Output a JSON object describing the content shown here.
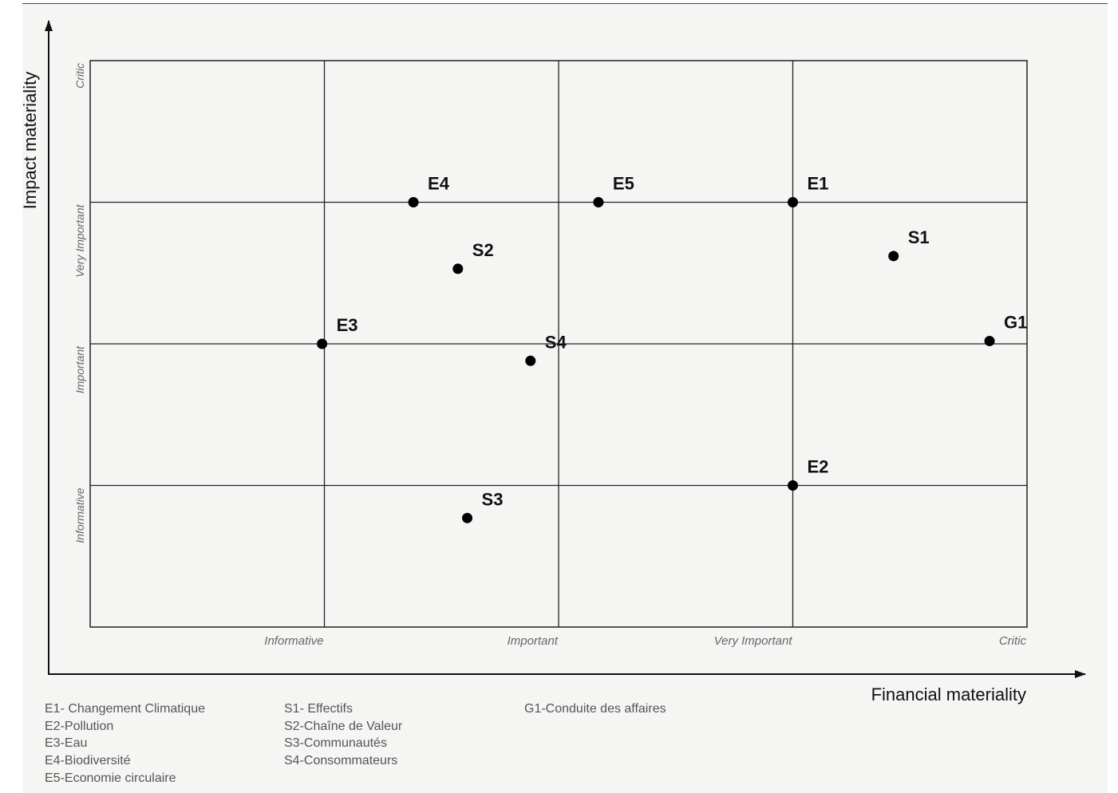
{
  "chart_data": {
    "type": "scatter",
    "xlabel": "Financial materiality",
    "ylabel": "Impact materiality",
    "xlim": [
      0,
      4
    ],
    "ylim": [
      0,
      4
    ],
    "x_ticks": [
      "Informative",
      "Important",
      "Very Important",
      "Critic"
    ],
    "y_ticks": [
      "Informative",
      "Important",
      "Very Important",
      "Critic"
    ],
    "grid": true,
    "points": [
      {
        "label": "E4",
        "x": 1.38,
        "y": 3.0
      },
      {
        "label": "E5",
        "x": 2.17,
        "y": 3.0
      },
      {
        "label": "E1",
        "x": 3.0,
        "y": 3.0
      },
      {
        "label": "S1",
        "x": 3.43,
        "y": 2.62
      },
      {
        "label": "S2",
        "x": 1.57,
        "y": 2.53
      },
      {
        "label": "E3",
        "x": 0.99,
        "y": 2.0
      },
      {
        "label": "G1",
        "x": 3.84,
        "y": 2.02
      },
      {
        "label": "S4",
        "x": 1.88,
        "y": 1.88
      },
      {
        "label": "E2",
        "x": 3.0,
        "y": 1.0
      },
      {
        "label": "S3",
        "x": 1.61,
        "y": 0.77
      }
    ]
  },
  "legend": {
    "col1": [
      "E1- Changement Climatique",
      "E2-Pollution",
      "E3-Eau",
      "E4-Biodiversité",
      "E5-Economie circulaire"
    ],
    "col2": [
      "S1- Effectifs",
      "S2-Chaîne de Valeur",
      "S3-Communautés",
      "S4-Consommateurs"
    ],
    "col3": [
      "G1-Conduite des affaires"
    ]
  }
}
